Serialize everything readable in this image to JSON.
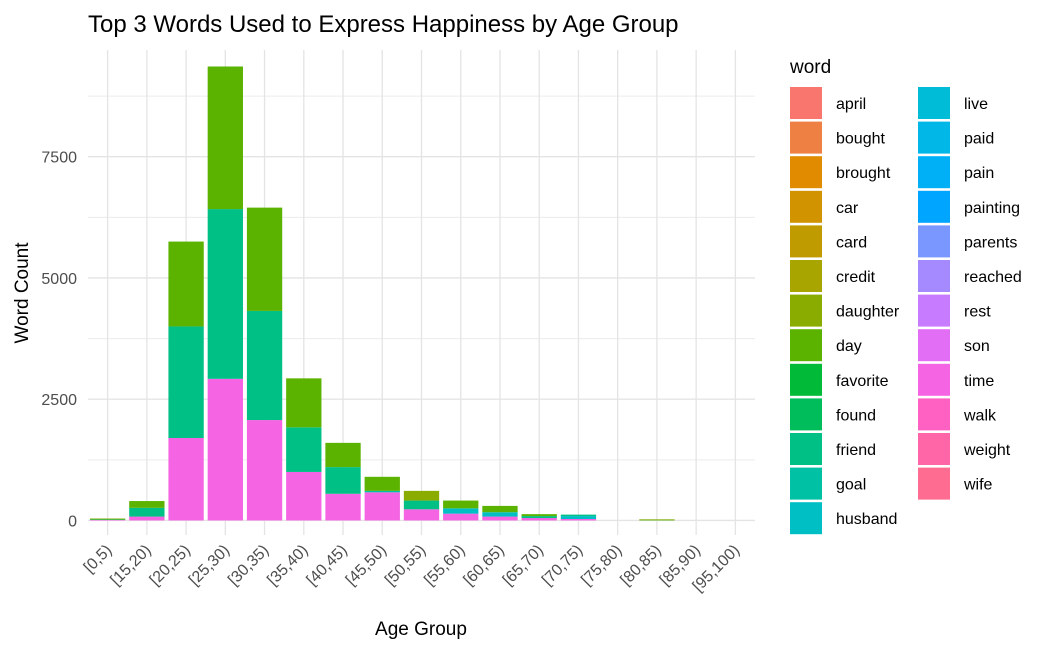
{
  "chart_data": {
    "type": "bar",
    "stacked": true,
    "title": "Top 3 Words Used to Express Happiness by Age Group",
    "xlabel": "Age Group",
    "ylabel": "Word Count",
    "ylim": [
      -300,
      9700
    ],
    "yticks": [
      0,
      2500,
      5000,
      7500
    ],
    "ytick_labels": [
      "0",
      "2500",
      "5000",
      "7500"
    ],
    "grid": true,
    "legend_title": "word",
    "legend_position": "right",
    "categories": [
      "[0,5)",
      "[15,20)",
      "[20,25)",
      "[25,30)",
      "[30,35)",
      "[35,40)",
      "[40,45)",
      "[45,50)",
      "[50,55)",
      "[55,60)",
      "[60,65)",
      "[65,70)",
      "[70,75)",
      "[75,80)",
      "[80,85)",
      "[85,90)",
      "[95,100)"
    ],
    "legend": [
      {
        "name": "april",
        "color": "#F8766D"
      },
      {
        "name": "bought",
        "color": "#EE8044"
      },
      {
        "name": "brought",
        "color": "#E08B00"
      },
      {
        "name": "car",
        "color": "#D29300"
      },
      {
        "name": "card",
        "color": "#BF9B00"
      },
      {
        "name": "credit",
        "color": "#A8A400"
      },
      {
        "name": "daughter",
        "color": "#8AAB00"
      },
      {
        "name": "day",
        "color": "#5BB300"
      },
      {
        "name": "favorite",
        "color": "#00BA38"
      },
      {
        "name": "found",
        "color": "#00BD5C"
      },
      {
        "name": "friend",
        "color": "#00C085"
      },
      {
        "name": "goal",
        "color": "#00C1A3"
      },
      {
        "name": "husband",
        "color": "#00BFC4"
      },
      {
        "name": "live",
        "color": "#00BCD6"
      },
      {
        "name": "paid",
        "color": "#00B7E7"
      },
      {
        "name": "pain",
        "color": "#00B0F6"
      },
      {
        "name": "painting",
        "color": "#00A5FF"
      },
      {
        "name": "parents",
        "color": "#7997FF"
      },
      {
        "name": "reached",
        "color": "#A58AFF"
      },
      {
        "name": "rest",
        "color": "#C77CFF"
      },
      {
        "name": "son",
        "color": "#E36EF6"
      },
      {
        "name": "time",
        "color": "#F564E3"
      },
      {
        "name": "walk",
        "color": "#FF61C3"
      },
      {
        "name": "weight",
        "color": "#FF66A8"
      },
      {
        "name": "wife",
        "color": "#FF6C91"
      }
    ],
    "stacks": [
      [
        {
          "word": "time",
          "value": 10
        },
        {
          "word": "friend",
          "value": 10
        },
        {
          "word": "daughter",
          "value": 20
        }
      ],
      [
        {
          "word": "time",
          "value": 80
        },
        {
          "word": "friend",
          "value": 180
        },
        {
          "word": "day",
          "value": 140
        }
      ],
      [
        {
          "word": "time",
          "value": 1700
        },
        {
          "word": "friend",
          "value": 2300
        },
        {
          "word": "day",
          "value": 1750
        }
      ],
      [
        {
          "word": "time",
          "value": 2920
        },
        {
          "word": "friend",
          "value": 3500
        },
        {
          "word": "day",
          "value": 2940
        }
      ],
      [
        {
          "word": "time",
          "value": 2070
        },
        {
          "word": "friend",
          "value": 2250
        },
        {
          "word": "day",
          "value": 2130
        }
      ],
      [
        {
          "word": "time",
          "value": 1000
        },
        {
          "word": "friend",
          "value": 920
        },
        {
          "word": "day",
          "value": 1010
        }
      ],
      [
        {
          "word": "time",
          "value": 550
        },
        {
          "word": "friend",
          "value": 550
        },
        {
          "word": "day",
          "value": 500
        }
      ],
      [
        {
          "word": "time",
          "value": 580
        },
        {
          "word": "goal",
          "value": 30
        },
        {
          "word": "day",
          "value": 290
        }
      ],
      [
        {
          "word": "time",
          "value": 230
        },
        {
          "word": "friend",
          "value": 180
        },
        {
          "word": "daughter",
          "value": 200
        }
      ],
      [
        {
          "word": "time",
          "value": 140
        },
        {
          "word": "husband",
          "value": 110
        },
        {
          "word": "day",
          "value": 160
        }
      ],
      [
        {
          "word": "time",
          "value": 80
        },
        {
          "word": "husband",
          "value": 90
        },
        {
          "word": "day",
          "value": 130
        }
      ],
      [
        {
          "word": "time",
          "value": 50
        },
        {
          "word": "friend",
          "value": 40
        },
        {
          "word": "day",
          "value": 40
        }
      ],
      [
        {
          "word": "time",
          "value": 30
        },
        {
          "word": "husband",
          "value": 60
        },
        {
          "word": "friend",
          "value": 30
        }
      ],
      [],
      [
        {
          "word": "day",
          "value": 15
        },
        {
          "word": "daughter",
          "value": 10
        }
      ],
      [],
      []
    ]
  }
}
